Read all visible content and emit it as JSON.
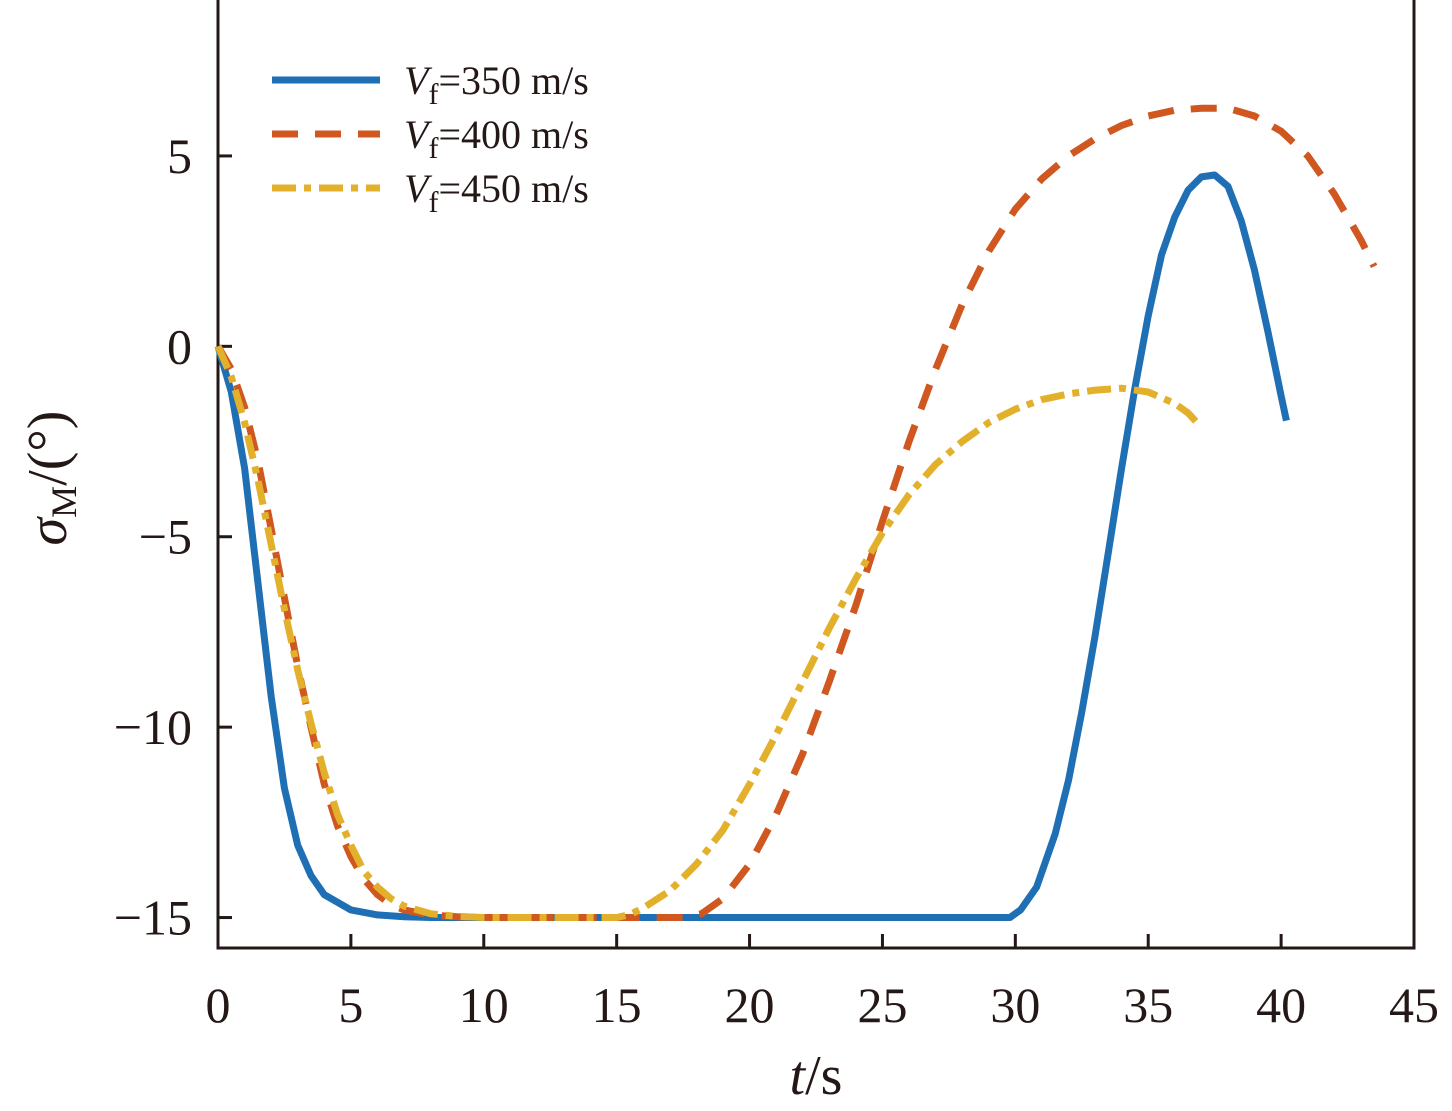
{
  "chart_data": {
    "type": "line",
    "title": "",
    "xlabel": {
      "var": "t",
      "unit": "/s"
    },
    "ylabel": {
      "var": "σ",
      "sub": "M",
      "unit": "/(°)"
    },
    "xlim": [
      0,
      45
    ],
    "ylim": [
      -15.8,
      9.2
    ],
    "xticks": [
      0,
      5,
      10,
      15,
      20,
      25,
      30,
      35,
      40,
      45
    ],
    "yticks": [
      5,
      0,
      -5,
      -10,
      -15
    ],
    "ytick_labels": [
      "5",
      "0",
      "−5",
      "−10",
      "−15"
    ],
    "grid": false,
    "legend_position": "top-left",
    "series": [
      {
        "name": "Vf=350 m/s",
        "label_var": "V",
        "label_sub": "f",
        "label_rest": "=350 m/s",
        "color": "#1f6fb5",
        "style": "solid",
        "points": [
          [
            0,
            0
          ],
          [
            0.5,
            -1.2
          ],
          [
            1,
            -3.2
          ],
          [
            1.5,
            -6.2
          ],
          [
            2,
            -9.2
          ],
          [
            2.5,
            -11.6
          ],
          [
            3,
            -13.1
          ],
          [
            3.5,
            -13.9
          ],
          [
            4,
            -14.4
          ],
          [
            5,
            -14.8
          ],
          [
            6,
            -14.93
          ],
          [
            7,
            -14.98
          ],
          [
            8,
            -15
          ],
          [
            10,
            -15
          ],
          [
            15,
            -15
          ],
          [
            20,
            -15
          ],
          [
            25,
            -15
          ],
          [
            29.8,
            -15
          ],
          [
            30.2,
            -14.8
          ],
          [
            30.8,
            -14.2
          ],
          [
            31.5,
            -12.8
          ],
          [
            32,
            -11.4
          ],
          [
            32.5,
            -9.6
          ],
          [
            33,
            -7.6
          ],
          [
            33.5,
            -5.4
          ],
          [
            34,
            -3.2
          ],
          [
            34.5,
            -1.1
          ],
          [
            35,
            0.8
          ],
          [
            35.5,
            2.4
          ],
          [
            36,
            3.4
          ],
          [
            36.5,
            4.1
          ],
          [
            37,
            4.45
          ],
          [
            37.5,
            4.5
          ],
          [
            38,
            4.2
          ],
          [
            38.5,
            3.3
          ],
          [
            39,
            2
          ],
          [
            39.5,
            0.4
          ],
          [
            40,
            -1.3
          ],
          [
            40.2,
            -1.95
          ]
        ]
      },
      {
        "name": "Vf=400 m/s",
        "label_var": "V",
        "label_sub": "f",
        "label_rest": "=400 m/s",
        "color": "#d0571f",
        "style": "dashed",
        "points": [
          [
            0,
            0
          ],
          [
            0.5,
            -0.6
          ],
          [
            1,
            -1.6
          ],
          [
            1.5,
            -3
          ],
          [
            2,
            -4.8
          ],
          [
            2.5,
            -6.6
          ],
          [
            3,
            -8.4
          ],
          [
            3.5,
            -10
          ],
          [
            4,
            -11.5
          ],
          [
            4.5,
            -12.6
          ],
          [
            5,
            -13.4
          ],
          [
            5.5,
            -14
          ],
          [
            6,
            -14.4
          ],
          [
            6.5,
            -14.65
          ],
          [
            7,
            -14.8
          ],
          [
            8,
            -14.93
          ],
          [
            9,
            -14.98
          ],
          [
            10,
            -15
          ],
          [
            15,
            -15
          ],
          [
            17.5,
            -15
          ],
          [
            18.2,
            -14.9
          ],
          [
            19,
            -14.5
          ],
          [
            20,
            -13.6
          ],
          [
            21,
            -12.3
          ],
          [
            22,
            -10.7
          ],
          [
            23,
            -8.8
          ],
          [
            24,
            -6.8
          ],
          [
            25,
            -4.6
          ],
          [
            26,
            -2.5
          ],
          [
            27,
            -0.6
          ],
          [
            28,
            1.1
          ],
          [
            29,
            2.5
          ],
          [
            30,
            3.6
          ],
          [
            31,
            4.4
          ],
          [
            32,
            5
          ],
          [
            33,
            5.45
          ],
          [
            34,
            5.8
          ],
          [
            35,
            6.05
          ],
          [
            36,
            6.2
          ],
          [
            37,
            6.25
          ],
          [
            38,
            6.25
          ],
          [
            39,
            6.05
          ],
          [
            40,
            5.65
          ],
          [
            41,
            5
          ],
          [
            42,
            4
          ],
          [
            43,
            2.8
          ],
          [
            43.5,
            2.1
          ]
        ]
      },
      {
        "name": "Vf=450 m/s",
        "label_var": "V",
        "label_sub": "f",
        "label_rest": "=450 m/s",
        "color": "#e3b02b",
        "style": "dashdot",
        "points": [
          [
            0,
            0
          ],
          [
            0.5,
            -0.8
          ],
          [
            1,
            -2
          ],
          [
            1.5,
            -3.5
          ],
          [
            2,
            -5.2
          ],
          [
            2.5,
            -6.9
          ],
          [
            3,
            -8.5
          ],
          [
            3.5,
            -9.9
          ],
          [
            4,
            -11.2
          ],
          [
            4.5,
            -12.3
          ],
          [
            5,
            -13.1
          ],
          [
            5.5,
            -13.8
          ],
          [
            6,
            -14.2
          ],
          [
            6.5,
            -14.5
          ],
          [
            7,
            -14.7
          ],
          [
            8,
            -14.9
          ],
          [
            9,
            -14.97
          ],
          [
            10,
            -15
          ],
          [
            15,
            -15
          ],
          [
            15.5,
            -14.92
          ],
          [
            16,
            -14.75
          ],
          [
            17,
            -14.3
          ],
          [
            18,
            -13.6
          ],
          [
            19,
            -12.7
          ],
          [
            20,
            -11.5
          ],
          [
            21,
            -10.2
          ],
          [
            22,
            -8.8
          ],
          [
            23,
            -7.4
          ],
          [
            24,
            -6.1
          ],
          [
            25,
            -4.9
          ],
          [
            26,
            -3.9
          ],
          [
            27,
            -3.1
          ],
          [
            28,
            -2.5
          ],
          [
            29,
            -2
          ],
          [
            30,
            -1.65
          ],
          [
            31,
            -1.4
          ],
          [
            32,
            -1.25
          ],
          [
            33,
            -1.15
          ],
          [
            34,
            -1.1
          ],
          [
            35,
            -1.2
          ],
          [
            36,
            -1.5
          ],
          [
            36.5,
            -1.75
          ],
          [
            36.9,
            -2.05
          ]
        ]
      }
    ]
  }
}
